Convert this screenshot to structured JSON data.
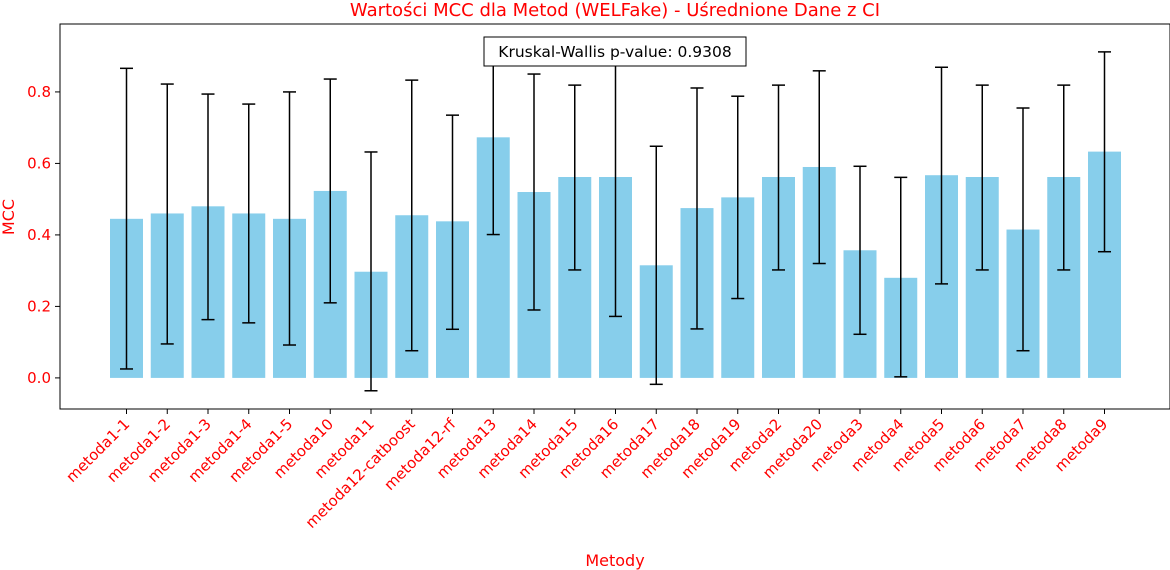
{
  "chart_data": {
    "type": "bar",
    "title": "Wartości MCC dla Metod (WELFake) - Uśrednione Dane z CI",
    "xlabel": "Metody",
    "ylabel": "MCC",
    "ylim": [
      -0.087,
      0.99
    ],
    "yticks": [
      0.0,
      0.2,
      0.4,
      0.6,
      0.8
    ],
    "ytick_labels": [
      "0.0",
      "0.2",
      "0.4",
      "0.6",
      "0.8"
    ],
    "bar_color": "#87ceeb",
    "error_color": "#000000",
    "label_color": "#ff0000",
    "grid": false,
    "categories": [
      "metoda1-1",
      "metoda1-2",
      "metoda1-3",
      "metoda1-4",
      "metoda1-5",
      "metoda10",
      "metoda11",
      "metoda12-catboost",
      "metoda12-rf",
      "metoda13",
      "metoda14",
      "metoda15",
      "metoda16",
      "metoda17",
      "metoda18",
      "metoda19",
      "metoda2",
      "metoda20",
      "metoda3",
      "metoda4",
      "metoda5",
      "metoda6",
      "metoda7",
      "metoda8",
      "metoda9"
    ],
    "values": [
      0.445,
      0.46,
      0.48,
      0.46,
      0.445,
      0.523,
      0.297,
      0.455,
      0.438,
      0.673,
      0.52,
      0.562,
      0.562,
      0.315,
      0.475,
      0.505,
      0.562,
      0.59,
      0.357,
      0.28,
      0.567,
      0.562,
      0.415,
      0.562,
      0.633
    ],
    "ci_lower": [
      0.025,
      0.095,
      0.163,
      0.154,
      0.092,
      0.21,
      -0.036,
      0.076,
      0.136,
      0.401,
      0.19,
      0.302,
      0.172,
      -0.018,
      0.137,
      0.222,
      0.302,
      0.32,
      0.122,
      0.003,
      0.263,
      0.302,
      0.076,
      0.302,
      0.353
    ],
    "ci_upper": [
      0.866,
      0.822,
      0.794,
      0.766,
      0.8,
      0.836,
      0.632,
      0.833,
      0.735,
      0.945,
      0.85,
      0.819,
      0.945,
      0.648,
      0.811,
      0.788,
      0.819,
      0.859,
      0.592,
      0.561,
      0.869,
      0.819,
      0.755,
      0.819,
      0.912
    ],
    "annotation": "Kruskal-Wallis p-value: 0.9308"
  }
}
